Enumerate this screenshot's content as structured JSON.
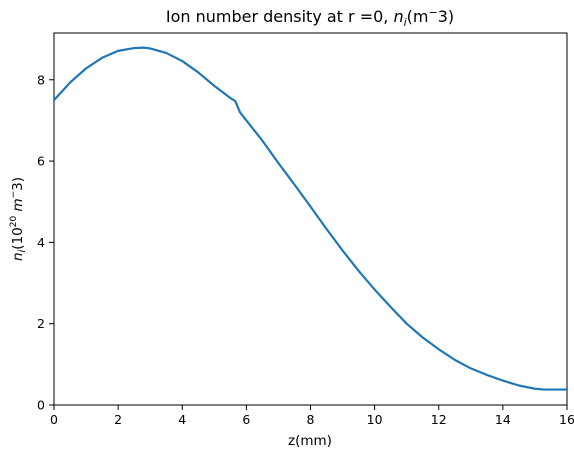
{
  "chart_data": {
    "type": "line",
    "title": {
      "main": "Ion number density at r =0, ",
      "math_n": "n",
      "math_sub": "i",
      "math_unit": "(m",
      "math_sup": "−",
      "math_tail": "3)"
    },
    "xlabel": "z(mm)",
    "ylabel": {
      "n": "n",
      "sub": "i",
      "open": "(10",
      "exp": "20",
      "unit": " m",
      "sup": "−",
      "tail": "3)"
    },
    "xlim": [
      0,
      16
    ],
    "ylim": [
      0,
      9.15
    ],
    "xticks": [
      0,
      2,
      4,
      6,
      8,
      10,
      12,
      14,
      16
    ],
    "yticks": [
      0,
      2,
      4,
      6,
      8
    ],
    "grid": false,
    "series": [
      {
        "color": "#1f77b4",
        "x": [
          0,
          0.5,
          1,
          1.5,
          2,
          2.5,
          2.8,
          3,
          3.5,
          4,
          4.5,
          5,
          5.5,
          5.65,
          5.8,
          6,
          6.5,
          7,
          7.5,
          8,
          8.5,
          9,
          9.5,
          10,
          10.5,
          11,
          11.5,
          12,
          12.5,
          13,
          13.5,
          14,
          14.5,
          15,
          15.3,
          15.5,
          16
        ],
        "y": [
          7.5,
          7.93,
          8.28,
          8.54,
          8.71,
          8.78,
          8.79,
          8.77,
          8.66,
          8.46,
          8.18,
          7.85,
          7.55,
          7.48,
          7.2,
          7.0,
          6.5,
          5.95,
          5.42,
          4.88,
          4.33,
          3.8,
          3.3,
          2.84,
          2.41,
          2.0,
          1.66,
          1.37,
          1.11,
          0.9,
          0.74,
          0.6,
          0.48,
          0.4,
          0.38,
          0.38,
          0.38
        ]
      }
    ]
  }
}
